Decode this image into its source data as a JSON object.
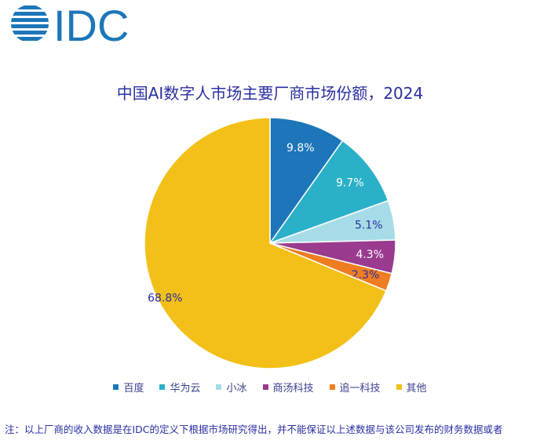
{
  "logo": "IDC",
  "chart_data": {
    "type": "pie",
    "title": "中国AI数字人市场主要厂商市场份额，2024",
    "categories": [
      "百度",
      "华为云",
      "小冰",
      "商汤科技",
      "追一科技",
      "其他"
    ],
    "values": [
      9.8,
      9.7,
      5.1,
      4.3,
      2.3,
      68.8
    ],
    "labels": [
      "9.8%",
      "9.7%",
      "5.1%",
      "4.3%",
      "2.3%",
      "68.8%"
    ],
    "colors": [
      "#1c76b9",
      "#2bb0c9",
      "#a6dce8",
      "#9a3b8f",
      "#ef7d22",
      "#f2c018"
    ],
    "label_colors": [
      "#ffffff",
      "#ffffff",
      "#2a2fa0",
      "#ffffff",
      "#2a2fa0",
      "#2a2fa0"
    ],
    "legend_position": "bottom"
  },
  "note": "注：以上厂商的收入数据是在IDC的定义下根据市场研究得出，并不能保证以上述数据与该公司发布的财务数据或者"
}
